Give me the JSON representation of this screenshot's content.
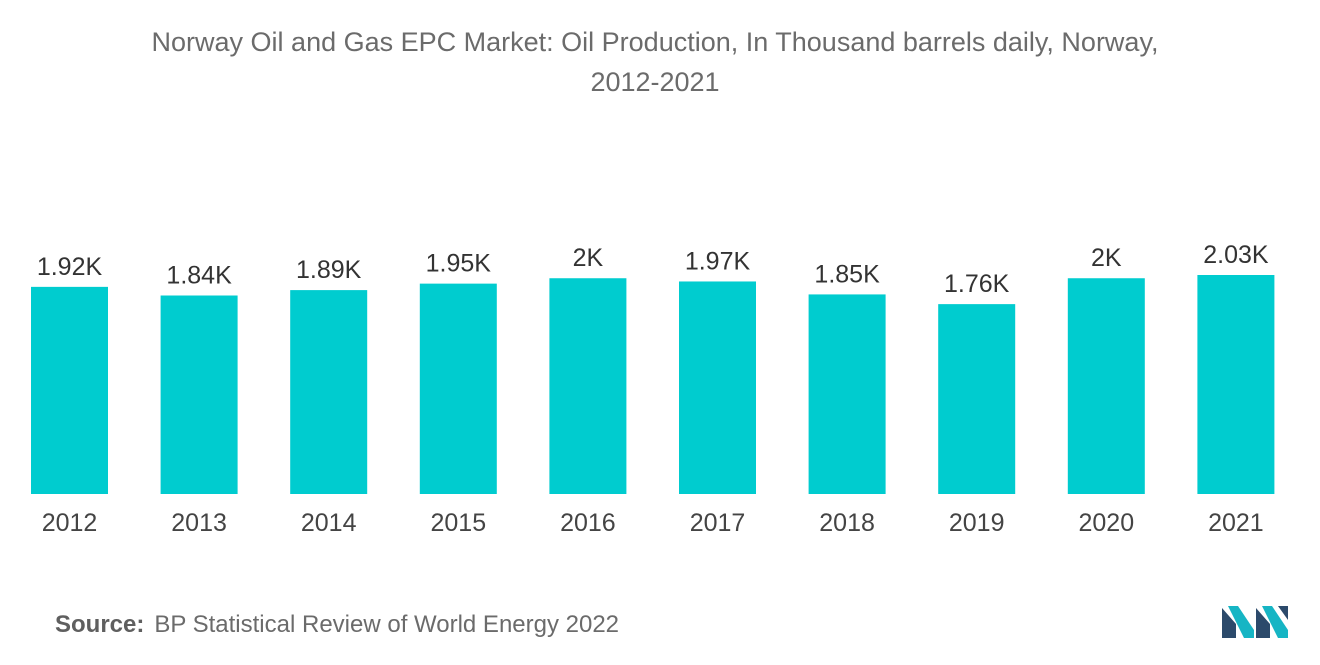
{
  "title": {
    "line1": "Norway Oil and Gas EPC Market: Oil Production, In Thousand barrels daily, Norway,",
    "line2": "2012-2021"
  },
  "source": {
    "label": "Source:",
    "text": "BP Statistical Review of World Energy 2022"
  },
  "logo": {
    "icon": "mordor-intelligence-logo-icon"
  },
  "chart_data": {
    "type": "bar",
    "title": "Norway Oil and Gas EPC Market: Oil Production, In Thousand barrels daily, Norway, 2012-2021",
    "xlabel": "",
    "ylabel": "",
    "categories": [
      "2012",
      "2013",
      "2014",
      "2015",
      "2016",
      "2017",
      "2018",
      "2019",
      "2020",
      "2021"
    ],
    "values": [
      1.92,
      1.84,
      1.89,
      1.95,
      2.0,
      1.97,
      1.85,
      1.76,
      2.0,
      2.03
    ],
    "value_labels": [
      "1.92K",
      "1.84K",
      "1.89K",
      "1.95K",
      "2K",
      "1.97K",
      "1.85K",
      "1.76K",
      "2K",
      "2.03K"
    ],
    "ylim": [
      0,
      2.03
    ],
    "grid": false,
    "legend": "none",
    "bar_color": "#00cccf"
  }
}
